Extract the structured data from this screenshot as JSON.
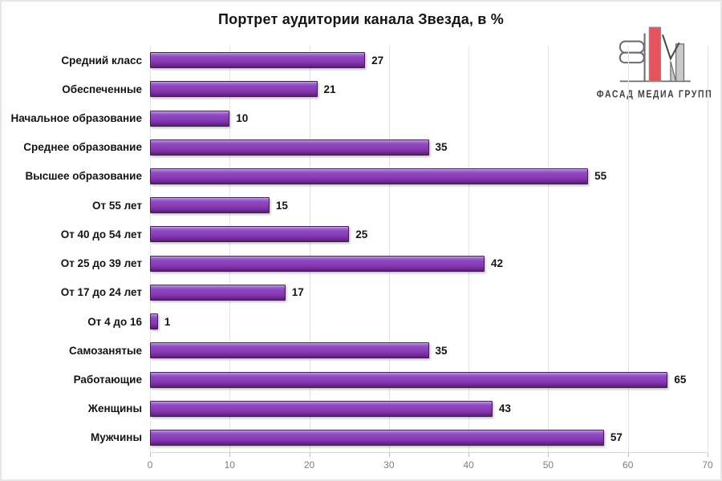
{
  "chart_data": {
    "type": "bar",
    "orientation": "horizontal",
    "title": "Портрет аудитории канала Звезда, в %",
    "categories": [
      "Средний класс",
      "Обеспеченные",
      "Начальное образование",
      "Среднее образование",
      "Высшее образование",
      "От 55 лет",
      "От 40 до 54 лет",
      "От 25 до 39 лет",
      "От 17 до 24 лет",
      "От 4 до 16",
      "Самозанятые",
      "Работающие",
      "Женщины",
      "Мужчины"
    ],
    "values": [
      27,
      21,
      10,
      35,
      55,
      15,
      25,
      42,
      17,
      1,
      35,
      65,
      43,
      57
    ],
    "xlabel": "",
    "ylabel": "",
    "xlim": [
      0,
      70
    ],
    "xticks": [
      0,
      10,
      20,
      30,
      40,
      50,
      60,
      70
    ],
    "grid": "vertical-major",
    "legend": "none",
    "value_labels": true,
    "bar_color": "#8a3cb6",
    "bar_highlight_color": "#c9aee2",
    "bar_shadow_color": "#552070",
    "bar_border_color": "#45185f",
    "gridline_color": "#e4e4e4",
    "tick_label_color": "#7f7f7f"
  },
  "logo": {
    "text": "ФАСАД МЕДИА ГРУПП",
    "accent_color": "#e6535f",
    "gray_color": "#c9c9c9",
    "outline_color": "#6e6e6e"
  }
}
